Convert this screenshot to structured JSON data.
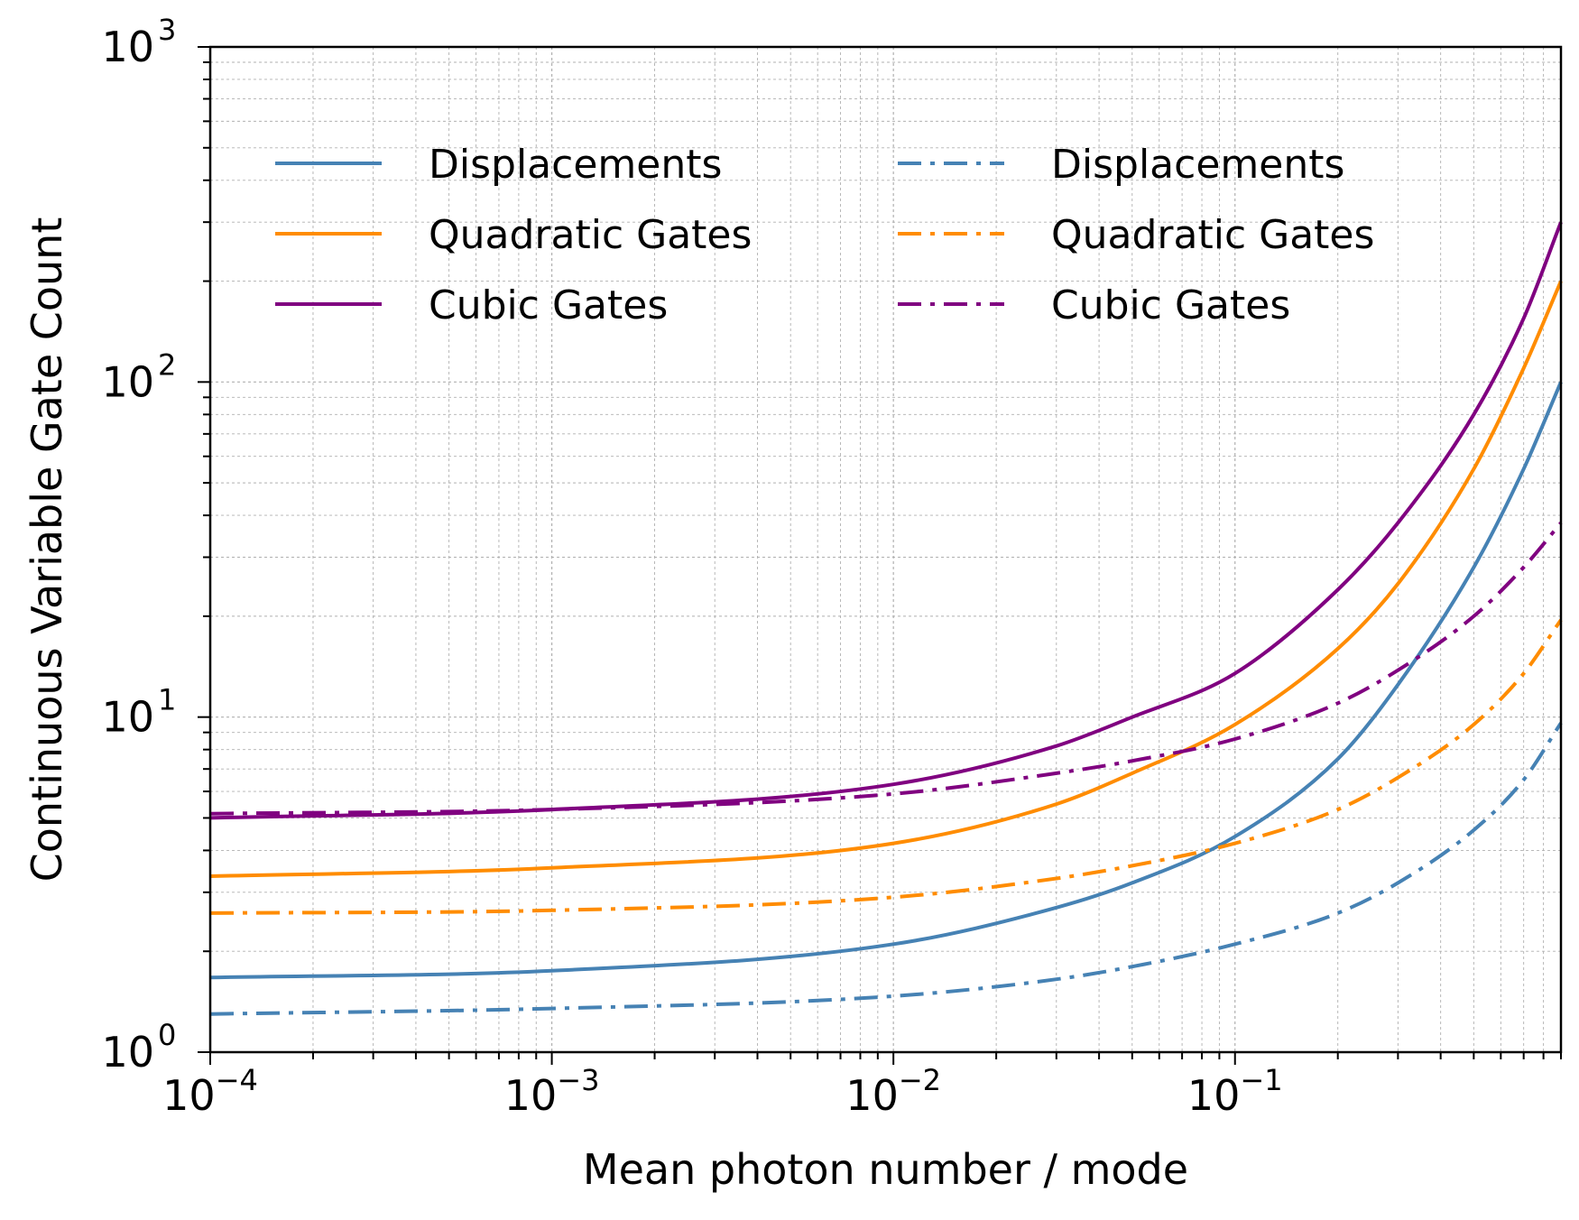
{
  "chart_data": {
    "type": "line",
    "xscale": "log",
    "yscale": "log",
    "xlabel": "Mean photon number / mode",
    "ylabel": "Continuous Variable Gate Count",
    "xlim": [
      0.0001,
      0.9
    ],
    "ylim": [
      1,
      1000
    ],
    "grid": true,
    "legend_position": "top-left",
    "legend_columns": 2,
    "x_ticks": [
      {
        "base": "10",
        "exp": "−4"
      },
      {
        "base": "10",
        "exp": "−3"
      },
      {
        "base": "10",
        "exp": "−2"
      },
      {
        "base": "10",
        "exp": "−1"
      }
    ],
    "y_ticks": [
      {
        "base": "10",
        "exp": "0"
      },
      {
        "base": "10",
        "exp": "1"
      },
      {
        "base": "10",
        "exp": "2"
      },
      {
        "base": "10",
        "exp": "3"
      }
    ],
    "x": [
      0.0001,
      0.001,
      0.01,
      0.03,
      0.05,
      0.1,
      0.2,
      0.3,
      0.5,
      0.7,
      0.9
    ],
    "series": [
      {
        "name": "Displacements",
        "style": "solid",
        "color": "#4682b4",
        "values": [
          1.67,
          1.75,
          2.1,
          2.7,
          3.2,
          4.4,
          7.5,
          12.5,
          28,
          55,
          100
        ]
      },
      {
        "name": "Quadratic Gates",
        "style": "solid",
        "color": "#ff8c00",
        "values": [
          3.35,
          3.55,
          4.2,
          5.5,
          6.8,
          9.5,
          16,
          25,
          55,
          110,
          200
        ]
      },
      {
        "name": "Cubic Gates",
        "style": "solid",
        "color": "#800080",
        "values": [
          5.0,
          5.3,
          6.3,
          8.2,
          10.0,
          13.5,
          24,
          38,
          80,
          155,
          300
        ]
      },
      {
        "name": "Displacements",
        "style": "dashdot",
        "color": "#4682b4",
        "values": [
          1.3,
          1.35,
          1.47,
          1.65,
          1.8,
          2.1,
          2.6,
          3.2,
          4.6,
          6.5,
          9.6
        ]
      },
      {
        "name": "Quadratic Gates",
        "style": "dashdot",
        "color": "#ff8c00",
        "values": [
          2.6,
          2.65,
          2.9,
          3.3,
          3.6,
          4.2,
          5.3,
          6.6,
          9.5,
          13.5,
          19.5
        ]
      },
      {
        "name": "Cubic Gates",
        "style": "dashdot",
        "color": "#800080",
        "values": [
          5.15,
          5.3,
          5.9,
          6.8,
          7.4,
          8.6,
          11,
          13.8,
          20,
          28,
          38
        ]
      }
    ]
  }
}
